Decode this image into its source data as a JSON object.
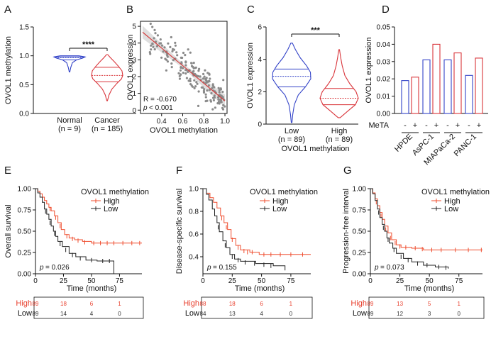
{
  "colors": {
    "normal": "#3343c8",
    "cancer": "#d9343a",
    "low": "#3343c8",
    "high": "#d9343a",
    "km_high": "#ef4d2e",
    "km_low": "#222222",
    "scatter": "#8a8a8a",
    "fit": "#d64040",
    "band": "#dcdcdc"
  },
  "chart_data": [
    {
      "id": "A",
      "type": "violin",
      "letter": "A",
      "ylabel": "OVOL1 methylation",
      "ylim": [
        0.0,
        1.5
      ],
      "yticks": [
        "0.0",
        "0.5",
        "1.0",
        "1.5"
      ],
      "categories": [
        "Normal",
        "Cancer"
      ],
      "category_n": [
        "(n = 9)",
        "(n = 185)"
      ],
      "groups": [
        {
          "name": "Normal",
          "min": 0.72,
          "q1": 0.93,
          "median": 0.97,
          "q3": 0.98,
          "max": 1.0,
          "profile": [
            [
              0.72,
              0.02
            ],
            [
              0.8,
              0.08
            ],
            [
              0.88,
              0.18
            ],
            [
              0.93,
              0.45
            ],
            [
              0.96,
              0.85
            ],
            [
              0.98,
              1.0
            ],
            [
              1.0,
              0.6
            ]
          ]
        },
        {
          "name": "Cancer",
          "min": 0.22,
          "q1": 0.55,
          "median": 0.66,
          "q3": 0.8,
          "max": 1.02,
          "profile": [
            [
              0.22,
              0.02
            ],
            [
              0.32,
              0.12
            ],
            [
              0.42,
              0.3
            ],
            [
              0.52,
              0.62
            ],
            [
              0.6,
              0.92
            ],
            [
              0.66,
              1.0
            ],
            [
              0.74,
              0.95
            ],
            [
              0.82,
              0.72
            ],
            [
              0.9,
              0.45
            ],
            [
              0.97,
              0.2
            ],
            [
              1.02,
              0.04
            ]
          ]
        }
      ],
      "significance": "****"
    },
    {
      "id": "B",
      "type": "scatter",
      "letter": "B",
      "xlabel": "OVOL1 methylation",
      "ylabel": "OVOL1 expression",
      "xlim": [
        0.2,
        1.02
      ],
      "ylim": [
        -0.2,
        5.3
      ],
      "xticks": [
        "0.4",
        "0.6",
        "0.8",
        "1.0"
      ],
      "yticks": [
        "0",
        "1",
        "2",
        "3",
        "4",
        "5"
      ],
      "fit": {
        "x1": 0.22,
        "y1": 4.65,
        "x2": 1.0,
        "y2": 0.55
      },
      "annotation_r": "R = -0.670",
      "annotation_p": "p",
      "annotation_p_value": "< 0.001",
      "n_points": 185
    },
    {
      "id": "C",
      "type": "violin",
      "letter": "C",
      "ylabel": "OVOL1 expression",
      "xlabel": "OVOL1 methylation",
      "ylim": [
        0,
        6
      ],
      "yticks": [
        "0",
        "2",
        "4",
        "6"
      ],
      "categories": [
        "Low",
        "High"
      ],
      "category_n": [
        "(n = 89)",
        "(n = 89)"
      ],
      "groups": [
        {
          "name": "Low",
          "min": 0.1,
          "q1": 2.3,
          "median": 2.95,
          "q3": 3.4,
          "max": 5.0,
          "profile": [
            [
              0.1,
              0.02
            ],
            [
              0.6,
              0.06
            ],
            [
              1.2,
              0.14
            ],
            [
              1.8,
              0.35
            ],
            [
              2.3,
              0.72
            ],
            [
              2.8,
              1.0
            ],
            [
              3.2,
              0.98
            ],
            [
              3.6,
              0.78
            ],
            [
              4.1,
              0.45
            ],
            [
              4.6,
              0.2
            ],
            [
              5.0,
              0.04
            ]
          ]
        },
        {
          "name": "High",
          "min": 0.4,
          "q1": 1.2,
          "median": 1.6,
          "q3": 2.2,
          "max": 4.6,
          "profile": [
            [
              0.4,
              0.05
            ],
            [
              0.8,
              0.45
            ],
            [
              1.2,
              0.85
            ],
            [
              1.6,
              1.0
            ],
            [
              2.0,
              0.88
            ],
            [
              2.5,
              0.55
            ],
            [
              3.0,
              0.3
            ],
            [
              3.6,
              0.16
            ],
            [
              4.1,
              0.08
            ],
            [
              4.6,
              0.02
            ]
          ]
        }
      ],
      "significance": "***"
    },
    {
      "id": "D",
      "type": "bar",
      "letter": "D",
      "ylabel": "OVOL1 expression",
      "ylim": [
        0,
        0.05
      ],
      "yticks": [
        "0.00",
        "0.01",
        "0.02",
        "0.03",
        "0.04",
        "0.05"
      ],
      "factor_label": "MeTA",
      "categories": [
        "HPDE",
        "AsPC-1",
        "MIAPaCa-2",
        "PANC-1"
      ],
      "series": [
        {
          "name": "-",
          "values": [
            0.019,
            0.031,
            0.031,
            0.022
          ]
        },
        {
          "name": "+",
          "values": [
            0.021,
            0.04,
            0.035,
            0.032
          ]
        }
      ]
    },
    {
      "id": "E",
      "type": "km",
      "letter": "E",
      "ylabel": "Overall survival",
      "xlabel": "Time (months)",
      "xlim": [
        0,
        95
      ],
      "ylim": [
        0,
        1.0
      ],
      "xticks": [
        "0",
        "25",
        "50",
        "75"
      ],
      "yticks": [
        "0.00",
        "0.25",
        "0.50",
        "0.75",
        "1.00"
      ],
      "legend_title": "OVOL1 methylation",
      "series": [
        {
          "name": "High",
          "steps": [
            [
              0,
              1.0
            ],
            [
              2,
              0.97
            ],
            [
              4,
              0.94
            ],
            [
              6,
              0.9
            ],
            [
              8,
              0.86
            ],
            [
              10,
              0.82
            ],
            [
              12,
              0.78
            ],
            [
              14,
              0.74
            ],
            [
              17,
              0.68
            ],
            [
              20,
              0.6
            ],
            [
              23,
              0.52
            ],
            [
              26,
              0.46
            ],
            [
              30,
              0.42
            ],
            [
              35,
              0.4
            ],
            [
              42,
              0.38
            ],
            [
              50,
              0.36
            ],
            [
              95,
              0.36
            ]
          ],
          "censor": [
            [
              13,
              0.76
            ],
            [
              18,
              0.66
            ],
            [
              22,
              0.56
            ],
            [
              28,
              0.44
            ],
            [
              33,
              0.41
            ],
            [
              38,
              0.39
            ],
            [
              44,
              0.37
            ],
            [
              52,
              0.36
            ],
            [
              58,
              0.36
            ],
            [
              64,
              0.36
            ],
            [
              70,
              0.36
            ],
            [
              78,
              0.36
            ],
            [
              86,
              0.36
            ],
            [
              93,
              0.36
            ]
          ]
        },
        {
          "name": "Low",
          "steps": [
            [
              0,
              1.0
            ],
            [
              2,
              0.95
            ],
            [
              4,
              0.9
            ],
            [
              6,
              0.84
            ],
            [
              8,
              0.76
            ],
            [
              10,
              0.7
            ],
            [
              12,
              0.64
            ],
            [
              14,
              0.56
            ],
            [
              16,
              0.5
            ],
            [
              18,
              0.44
            ],
            [
              20,
              0.38
            ],
            [
              24,
              0.32
            ],
            [
              30,
              0.24
            ],
            [
              36,
              0.2
            ],
            [
              45,
              0.16
            ],
            [
              55,
              0.15
            ],
            [
              68,
              0.15
            ],
            [
              70,
              0.0
            ]
          ],
          "censor": [
            [
              9,
              0.73
            ],
            [
              13,
              0.6
            ],
            [
              17,
              0.47
            ],
            [
              22,
              0.35
            ],
            [
              27,
              0.28
            ],
            [
              33,
              0.22
            ],
            [
              40,
              0.18
            ],
            [
              50,
              0.16
            ],
            [
              60,
              0.15
            ],
            [
              66,
              0.15
            ]
          ]
        }
      ],
      "pvalue_label": "p",
      "pvalue": "= 0.026",
      "risk_table": {
        "High": [
          "89",
          "18",
          "6",
          "1"
        ],
        "Low": [
          "89",
          "14",
          "4",
          "0"
        ]
      }
    },
    {
      "id": "F",
      "type": "km",
      "letter": "F",
      "ylabel": "Disease-specific survival",
      "xlabel": "Time (months)",
      "xlim": [
        0,
        92
      ],
      "ylim": [
        0.25,
        1.0
      ],
      "xticks": [
        "0",
        "25",
        "50",
        "75"
      ],
      "yticks": [
        "0.4",
        "0.6",
        "0.8",
        "1.0"
      ],
      "legend_title": "OVOL1 methylation",
      "series": [
        {
          "name": "High",
          "steps": [
            [
              0,
              1.0
            ],
            [
              3,
              0.96
            ],
            [
              6,
              0.92
            ],
            [
              9,
              0.88
            ],
            [
              12,
              0.83
            ],
            [
              15,
              0.76
            ],
            [
              18,
              0.7
            ],
            [
              21,
              0.64
            ],
            [
              24,
              0.56
            ],
            [
              28,
              0.5
            ],
            [
              32,
              0.46
            ],
            [
              40,
              0.44
            ],
            [
              48,
              0.42
            ],
            [
              92,
              0.42
            ]
          ],
          "censor": [
            [
              16,
              0.74
            ],
            [
              20,
              0.66
            ],
            [
              25,
              0.55
            ],
            [
              30,
              0.48
            ],
            [
              35,
              0.45
            ],
            [
              38,
              0.44
            ],
            [
              42,
              0.44
            ],
            [
              52,
              0.42
            ],
            [
              58,
              0.42
            ],
            [
              66,
              0.42
            ],
            [
              75,
              0.42
            ],
            [
              85,
              0.42
            ]
          ]
        },
        {
          "name": "Low",
          "steps": [
            [
              0,
              1.0
            ],
            [
              3,
              0.95
            ],
            [
              5,
              0.9
            ],
            [
              8,
              0.82
            ],
            [
              10,
              0.76
            ],
            [
              12,
              0.7
            ],
            [
              14,
              0.62
            ],
            [
              17,
              0.54
            ],
            [
              20,
              0.48
            ],
            [
              23,
              0.42
            ],
            [
              27,
              0.38
            ],
            [
              32,
              0.36
            ],
            [
              45,
              0.34
            ],
            [
              60,
              0.32
            ],
            [
              68,
              0.32
            ],
            [
              70,
              0.28
            ]
          ],
          "censor": [
            [
              13,
              0.66
            ],
            [
              19,
              0.5
            ],
            [
              25,
              0.4
            ],
            [
              30,
              0.37
            ],
            [
              36,
              0.35
            ],
            [
              44,
              0.34
            ],
            [
              52,
              0.33
            ],
            [
              58,
              0.32
            ]
          ]
        }
      ],
      "pvalue_label": "p",
      "pvalue": "= 0.155",
      "risk_table": {
        "High": [
          "88",
          "18",
          "6",
          "1"
        ],
        "Low": [
          "84",
          "13",
          "4",
          "0"
        ]
      }
    },
    {
      "id": "G",
      "type": "km",
      "letter": "G",
      "ylabel": "Progression-free interval",
      "xlabel": "Time (months)",
      "xlim": [
        0,
        95
      ],
      "ylim": [
        0,
        1.0
      ],
      "xticks": [
        "0",
        "25",
        "50",
        "75"
      ],
      "yticks": [
        "0.00",
        "0.25",
        "0.50",
        "0.75",
        "1.00"
      ],
      "legend_title": "OVOL1 methylation",
      "series": [
        {
          "name": "High",
          "steps": [
            [
              0,
              1.0
            ],
            [
              2,
              0.95
            ],
            [
              4,
              0.88
            ],
            [
              6,
              0.8
            ],
            [
              8,
              0.72
            ],
            [
              10,
              0.64
            ],
            [
              12,
              0.56
            ],
            [
              15,
              0.48
            ],
            [
              18,
              0.4
            ],
            [
              22,
              0.34
            ],
            [
              26,
              0.31
            ],
            [
              35,
              0.3
            ],
            [
              45,
              0.28
            ],
            [
              95,
              0.28
            ]
          ],
          "censor": [
            [
              5,
              0.84
            ],
            [
              9,
              0.68
            ],
            [
              13,
              0.52
            ],
            [
              17,
              0.42
            ],
            [
              21,
              0.36
            ],
            [
              25,
              0.32
            ],
            [
              30,
              0.31
            ],
            [
              38,
              0.3
            ],
            [
              44,
              0.29
            ],
            [
              52,
              0.28
            ],
            [
              60,
              0.28
            ],
            [
              72,
              0.28
            ],
            [
              83,
              0.28
            ],
            [
              94,
              0.28
            ]
          ]
        },
        {
          "name": "Low",
          "steps": [
            [
              0,
              1.0
            ],
            [
              2,
              0.94
            ],
            [
              4,
              0.86
            ],
            [
              6,
              0.76
            ],
            [
              8,
              0.66
            ],
            [
              10,
              0.58
            ],
            [
              12,
              0.5
            ],
            [
              14,
              0.42
            ],
            [
              16,
              0.36
            ],
            [
              19,
              0.3
            ],
            [
              22,
              0.24
            ],
            [
              28,
              0.18
            ],
            [
              35,
              0.14
            ],
            [
              45,
              0.1
            ],
            [
              55,
              0.08
            ],
            [
              66,
              0.06
            ]
          ],
          "censor": [
            [
              7,
              0.72
            ],
            [
              11,
              0.54
            ],
            [
              15,
              0.4
            ],
            [
              20,
              0.28
            ],
            [
              26,
              0.2
            ],
            [
              32,
              0.16
            ],
            [
              40,
              0.12
            ],
            [
              48,
              0.1
            ],
            [
              58,
              0.08
            ],
            [
              64,
              0.07
            ]
          ]
        }
      ],
      "pvalue_label": "p",
      "pvalue": "= 0.073",
      "risk_table": {
        "High": [
          "89",
          "13",
          "5",
          "1"
        ],
        "Low": [
          "89",
          "12",
          "3",
          "0"
        ]
      }
    }
  ]
}
